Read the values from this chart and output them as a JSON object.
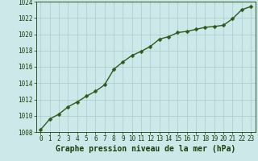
{
  "x": [
    0,
    1,
    2,
    3,
    4,
    5,
    6,
    7,
    8,
    9,
    10,
    11,
    12,
    13,
    14,
    15,
    16,
    17,
    18,
    19,
    20,
    21,
    22,
    23
  ],
  "y": [
    1008.3,
    1009.6,
    1010.2,
    1011.1,
    1011.7,
    1012.4,
    1013.0,
    1013.8,
    1015.7,
    1016.6,
    1017.4,
    1017.9,
    1018.5,
    1019.4,
    1019.7,
    1020.2,
    1020.35,
    1020.6,
    1020.85,
    1020.95,
    1021.1,
    1021.9,
    1023.0,
    1023.4
  ],
  "line_color": "#2d5a1b",
  "marker_color": "#2d5a1b",
  "bg_color": "#cce8e8",
  "grid_color": "#aacaca",
  "xlabel": "Graphe pression niveau de la mer (hPa)",
  "xlabel_color": "#1a3d0a",
  "tick_label_color": "#1a3d0a",
  "ylim": [
    1008,
    1024
  ],
  "xlim": [
    -0.5,
    23.5
  ],
  "yticks": [
    1008,
    1010,
    1012,
    1014,
    1016,
    1018,
    1020,
    1022,
    1024
  ],
  "xticks": [
    0,
    1,
    2,
    3,
    4,
    5,
    6,
    7,
    8,
    9,
    10,
    11,
    12,
    13,
    14,
    15,
    16,
    17,
    18,
    19,
    20,
    21,
    22,
    23
  ],
  "marker_size": 2.5,
  "line_width": 1.0,
  "font_size_ticks": 5.5,
  "font_size_xlabel": 7.0
}
